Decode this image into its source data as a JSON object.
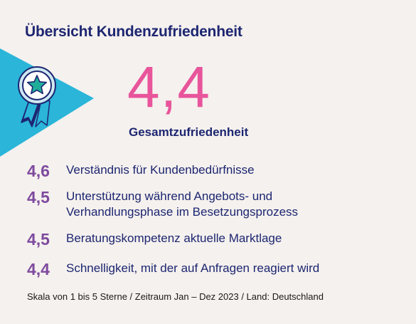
{
  "title": "Übersicht Kundenzufriedenheit",
  "overall": {
    "score": "4,4",
    "label": "Gesamtzufriedenheit"
  },
  "metrics": [
    {
      "score": "4,6",
      "label": "Verständnis für Kundenbedürfnisse"
    },
    {
      "score": "4,5",
      "label": "Unterstützung während Angebots- und Verhandlungsphase im Besetzungsprozess"
    },
    {
      "score": "4,5",
      "label": "Beratungskompetenz aktuelle Marktlage"
    },
    {
      "score": "4,4",
      "label": "Schnelligkeit, mit der auf Anfragen reagiert wird"
    }
  ],
  "footnote": "Skala von 1 bis 5 Sterne / Zeitraum Jan – Dez 2023 /  Land: Deutschland",
  "colors": {
    "background": "#f5f1ee",
    "navy": "#1d2671",
    "pink": "#e8559b",
    "purple": "#7e4a9e",
    "cyan": "#2ab5d9",
    "teal": "#1fae9a"
  },
  "icons": [
    "award-ribbon-icon"
  ]
}
